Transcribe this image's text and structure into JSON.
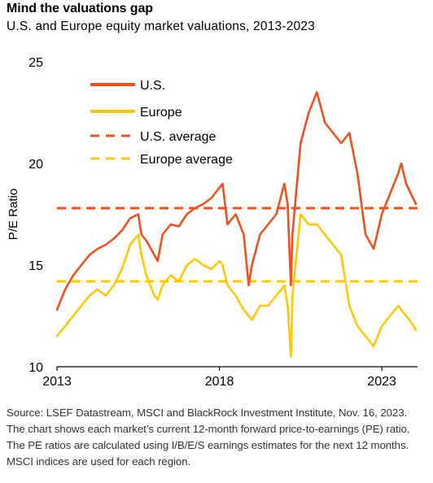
{
  "title": "Mind the valuations gap",
  "subtitle": "U.S. and Europe equity market valuations, 2013-2023",
  "source": "Source: LSEF Datastream, MSCI and BlackRock Investment Institute,  Nov. 16, 2023. The chart shows each market’s current 12-month forward price-to-earnings (PE) ratio. The PE ratios are calculated using I/B/E/S earnings estimates for the next 12 months. MSCI indices are used for each region.",
  "chart_data": {
    "type": "line",
    "title": "Mind the valuations gap",
    "subtitle": "U.S. and Europe equity market valuations, 2013-2023",
    "ylabel": "P/E Ratio",
    "xlabel": "",
    "xlim": [
      2013,
      2024.1
    ],
    "ylim": [
      10,
      25
    ],
    "yticks": [
      10,
      15,
      20,
      25
    ],
    "xticks": [
      2013,
      2018,
      2023
    ],
    "grid": false,
    "legend_position": "top-left",
    "colors": {
      "us": "#f0501e",
      "europe": "#ffc800"
    },
    "series": [
      {
        "name": "U.S.",
        "style": "solid",
        "x": [
          2013.0,
          2013.25,
          2013.5,
          2013.75,
          2014.0,
          2014.25,
          2014.5,
          2014.75,
          2015.0,
          2015.25,
          2015.5,
          2015.6,
          2015.75,
          2016.0,
          2016.1,
          2016.25,
          2016.5,
          2016.75,
          2017.0,
          2017.25,
          2017.5,
          2017.75,
          2018.0,
          2018.1,
          2018.25,
          2018.5,
          2018.75,
          2018.9,
          2019.0,
          2019.25,
          2019.5,
          2019.75,
          2020.0,
          2020.1,
          2020.2,
          2020.25,
          2020.5,
          2020.75,
          2021.0,
          2021.25,
          2021.5,
          2021.75,
          2022.0,
          2022.25,
          2022.5,
          2022.75,
          2023.0,
          2023.25,
          2023.5,
          2023.6,
          2023.75,
          2023.9,
          2024.05
        ],
        "values": [
          12.8,
          13.8,
          14.5,
          15.0,
          15.5,
          15.8,
          16.0,
          16.3,
          16.7,
          17.3,
          17.5,
          16.5,
          16.2,
          15.5,
          15.2,
          16.5,
          17.0,
          16.9,
          17.5,
          17.8,
          18.0,
          18.3,
          18.8,
          19.0,
          17.0,
          17.5,
          16.5,
          14.0,
          15.0,
          16.5,
          17.0,
          17.5,
          19.0,
          18.0,
          14.0,
          16.5,
          21.0,
          22.5,
          23.5,
          22.0,
          21.5,
          21.0,
          21.5,
          19.5,
          16.5,
          15.8,
          17.5,
          18.5,
          19.5,
          20.0,
          19.0,
          18.5,
          18.0
        ]
      },
      {
        "name": "Europe",
        "style": "solid",
        "x": [
          2013.0,
          2013.25,
          2013.5,
          2013.75,
          2014.0,
          2014.25,
          2014.5,
          2014.75,
          2015.0,
          2015.25,
          2015.5,
          2015.6,
          2015.75,
          2016.0,
          2016.1,
          2016.25,
          2016.5,
          2016.75,
          2017.0,
          2017.25,
          2017.5,
          2017.75,
          2018.0,
          2018.1,
          2018.25,
          2018.5,
          2018.75,
          2018.9,
          2019.0,
          2019.25,
          2019.5,
          2019.75,
          2020.0,
          2020.1,
          2020.2,
          2020.25,
          2020.5,
          2020.75,
          2021.0,
          2021.25,
          2021.5,
          2021.75,
          2022.0,
          2022.25,
          2022.5,
          2022.75,
          2023.0,
          2023.25,
          2023.5,
          2023.6,
          2023.75,
          2023.9,
          2024.05
        ],
        "values": [
          11.5,
          12.0,
          12.5,
          13.0,
          13.5,
          13.8,
          13.5,
          14.0,
          14.8,
          16.0,
          16.5,
          15.5,
          14.5,
          13.5,
          13.3,
          14.0,
          14.5,
          14.2,
          15.0,
          15.3,
          15.0,
          14.8,
          15.2,
          15.0,
          14.0,
          13.5,
          12.8,
          12.5,
          12.3,
          13.0,
          13.0,
          13.5,
          14.0,
          13.0,
          10.5,
          13.5,
          17.5,
          17.0,
          17.0,
          16.5,
          16.0,
          15.5,
          13.0,
          12.0,
          11.5,
          11.0,
          12.0,
          12.5,
          13.0,
          12.8,
          12.5,
          12.2,
          11.8
        ]
      },
      {
        "name": "U.S. average",
        "style": "dashed",
        "value": 17.8
      },
      {
        "name": "Europe average",
        "style": "dashed",
        "value": 14.2
      }
    ]
  }
}
